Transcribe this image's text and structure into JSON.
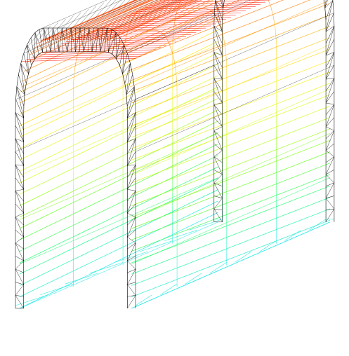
{
  "scene": {
    "object": "wireframe-mesh-arch",
    "background_color": "#ffffff",
    "edge_color": "#000000",
    "color_map": [
      "#00e5e5",
      "#00ff66",
      "#66ff00",
      "#ccff00",
      "#ffee00",
      "#ffaa00",
      "#ff6600",
      "#ff0000"
    ]
  }
}
